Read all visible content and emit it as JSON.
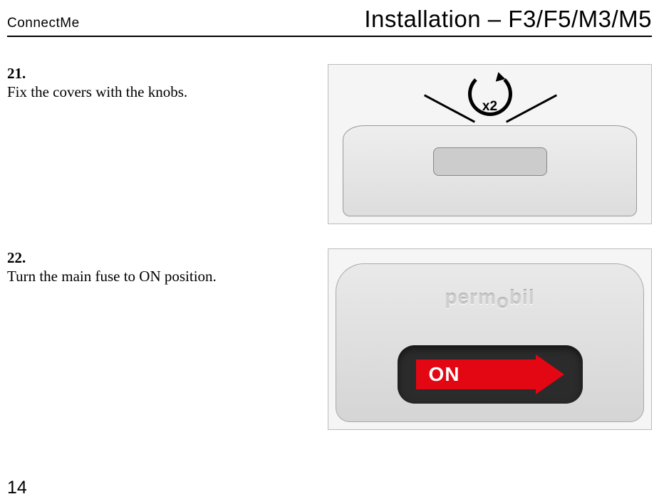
{
  "header": {
    "left": "ConnectMe",
    "right": "Installation – F3/F5/M3/M5"
  },
  "steps": [
    {
      "num": "21.",
      "body": "Fix the covers with the knobs.",
      "figure": {
        "type": "product-illustration",
        "knob_indicator": "x2",
        "background_color": "#f5f5f5",
        "border_color": "#bbbbbb",
        "annotation_color": "#000000"
      }
    },
    {
      "num": "22.",
      "body": "Turn the main fuse  to ON position.",
      "figure": {
        "type": "product-illustration",
        "logo_text": "permobil",
        "on_label": "ON",
        "on_arrow_color": "#e30613",
        "on_text_color": "#ffffff",
        "slot_color": "#2b2b2b",
        "background_color": "#e9e9e9"
      }
    }
  ],
  "footer": {
    "page_number": "14"
  }
}
